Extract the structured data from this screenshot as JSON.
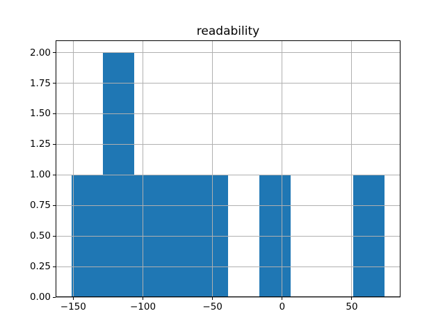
{
  "figure": {
    "background": "#ffffff"
  },
  "chart_data": {
    "type": "bar",
    "subtype": "histogram",
    "title": "readability",
    "xlabel": "",
    "ylabel": "",
    "bin_edges": [
      -151.4,
      -128.9,
      -106.4,
      -83.9,
      -61.4,
      -38.9,
      -16.4,
      6.1,
      28.7,
      51.2,
      73.7
    ],
    "counts": [
      1,
      2,
      1,
      1,
      1,
      0,
      1,
      0,
      0,
      1
    ],
    "xticks": [
      -150,
      -100,
      -50,
      0,
      50
    ],
    "xtick_labels": [
      "−150",
      "−100",
      "−50",
      "0",
      "50"
    ],
    "yticks": [
      0,
      0.25,
      0.5,
      0.75,
      1.0,
      1.25,
      1.5,
      1.75,
      2.0
    ],
    "ytick_labels": [
      "0.00",
      "0.25",
      "0.50",
      "0.75",
      "1.00",
      "1.25",
      "1.50",
      "1.75",
      "2.00"
    ],
    "xlim": [
      -162.66,
      84.96
    ],
    "ylim": [
      0,
      2.1
    ],
    "grid": true,
    "grid_over_bars": true,
    "legend_position": "none",
    "bar_color": "#1f77b4",
    "grid_color": "#b0b0b0",
    "spine_color": "#000000",
    "text_color": "#000000"
  }
}
